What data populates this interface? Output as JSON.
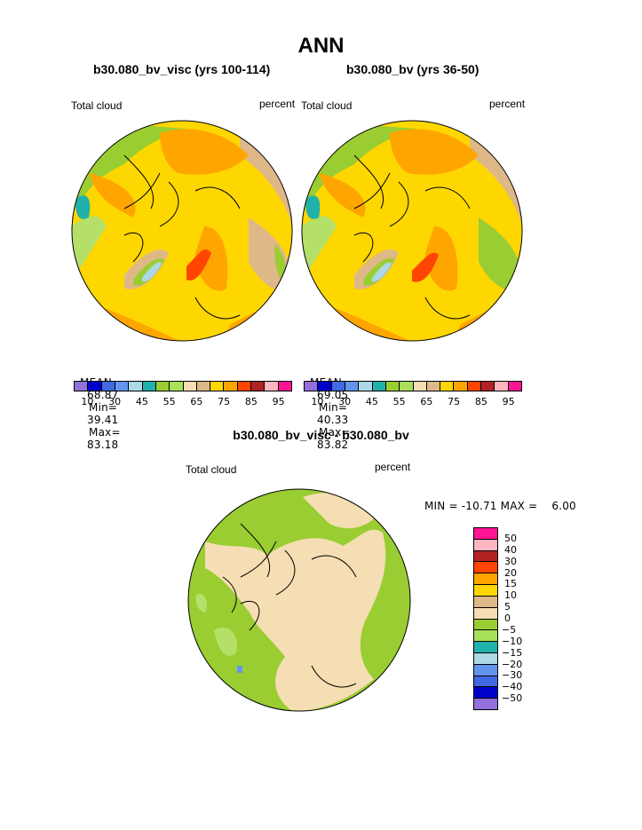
{
  "page": {
    "title": "ANN",
    "left_panel": {
      "case": "b30.080_bv_visc (yrs 100-114)",
      "variable": "Total cloud",
      "units": "percent",
      "stats": {
        "mean_label": "MEAN=",
        "mean": "68.87",
        "min_label": "Min=",
        "min": "39.41",
        "max_label": "Max=",
        "max": "83.18"
      }
    },
    "right_panel": {
      "case": "b30.080_bv (yrs 36-50)",
      "variable": "Total cloud",
      "units": "percent",
      "stats": {
        "mean_label": "MEAN=",
        "mean": "69.05",
        "min_label": "Min=",
        "min": "40.33",
        "max_label": "Max=",
        "max": "83.82"
      }
    },
    "diff_panel": {
      "case": "b30.080_bv_visc - b30.080_bv",
      "variable": "Total cloud",
      "units": "percent",
      "minmax": "MIN = -10.71 MAX =    6.00"
    }
  },
  "colorbar_main": {
    "colors": [
      "#9370db",
      "#0000cd",
      "#4169e1",
      "#6495ed",
      "#add8e6",
      "#20b2aa",
      "#9acd32",
      "#a8e05a",
      "#f5deb3",
      "#deb887",
      "#ffd700",
      "#ffa500",
      "#ff4500",
      "#b22222",
      "#ffb6c1",
      "#ff1493"
    ],
    "tick_labels": [
      "10",
      "30",
      "45",
      "55",
      "65",
      "75",
      "85",
      "95"
    ]
  },
  "colorbar_diff": {
    "colors": [
      "#ff1493",
      "#ffb6c1",
      "#b22222",
      "#ff4500",
      "#ffa500",
      "#ffd700",
      "#deb887",
      "#f5deb3",
      "#9acd32",
      "#a8e05a",
      "#20b2aa",
      "#add8e6",
      "#6495ed",
      "#4169e1",
      "#0000cd",
      "#9370db"
    ],
    "tick_labels": [
      "50",
      "40",
      "30",
      "20",
      "15",
      "10",
      "5",
      "0",
      "-5",
      "-10",
      "-15",
      "-20",
      "-30",
      "-40",
      "-50"
    ]
  },
  "map_colors": {
    "orange": "#ffa500",
    "yellow": "#ffd700",
    "tan": "#deb887",
    "wheat": "#f5deb3",
    "green": "#9acd32",
    "lightgreen": "#b4e06a",
    "teal": "#20b2aa",
    "lightblue": "#add8e6",
    "red": "#ff4500"
  }
}
